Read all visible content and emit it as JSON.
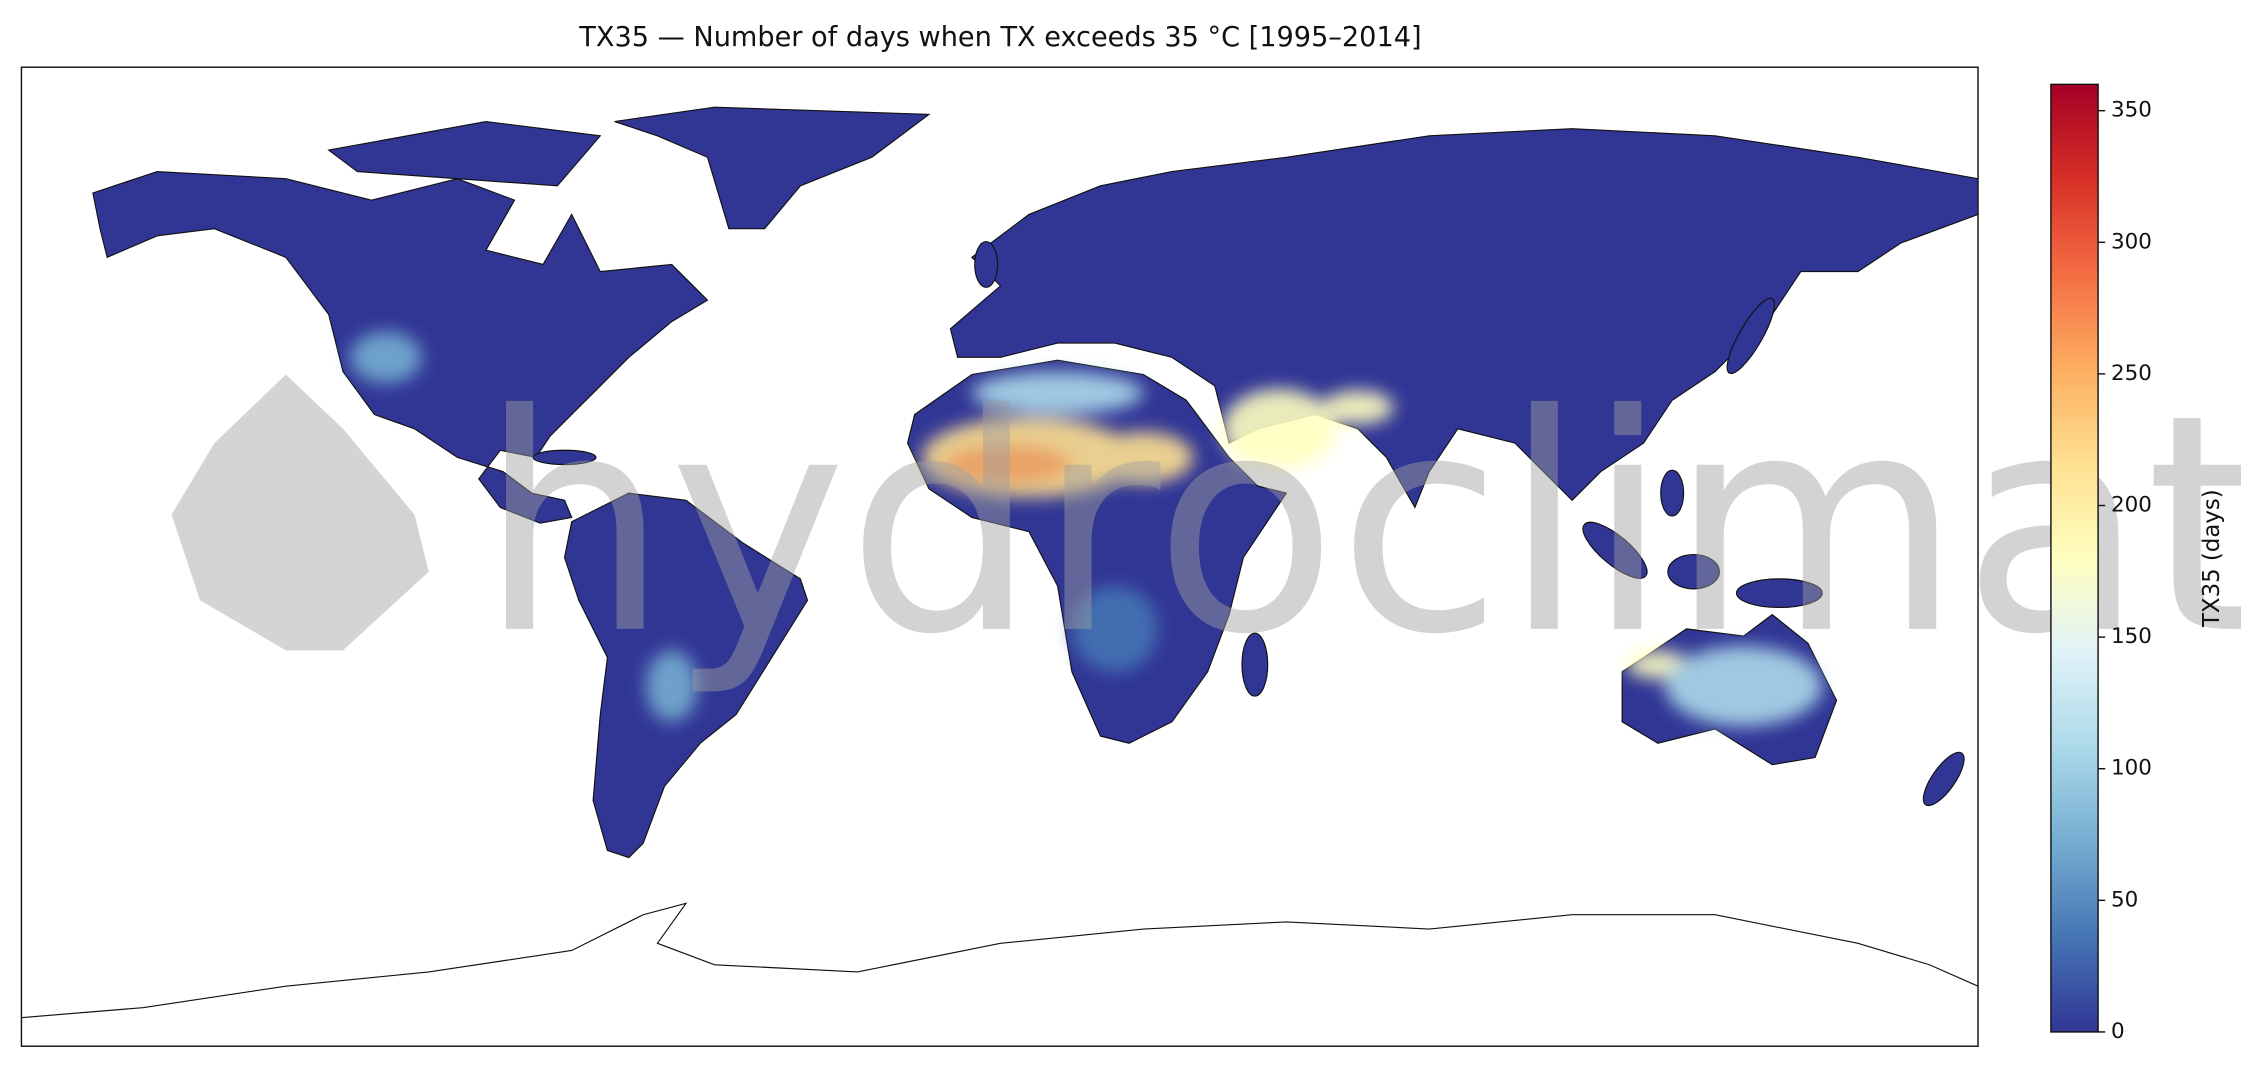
{
  "map": {
    "title": "TX35 — Number of days when TX exceeds 35 °C [1995–2014]",
    "watermark": "hydroclimat",
    "colorbar": {
      "label": "TX35 (days)",
      "lim": [
        0,
        360
      ],
      "ticks": [
        0,
        50,
        100,
        150,
        200,
        250,
        300,
        350
      ],
      "colors": [
        "#313695",
        "#4575b4",
        "#74add1",
        "#abd9e9",
        "#e0f3f8",
        "#ffffbf",
        "#fee090",
        "#fdae61",
        "#f46d43",
        "#d73027",
        "#a50026"
      ]
    }
  }
}
